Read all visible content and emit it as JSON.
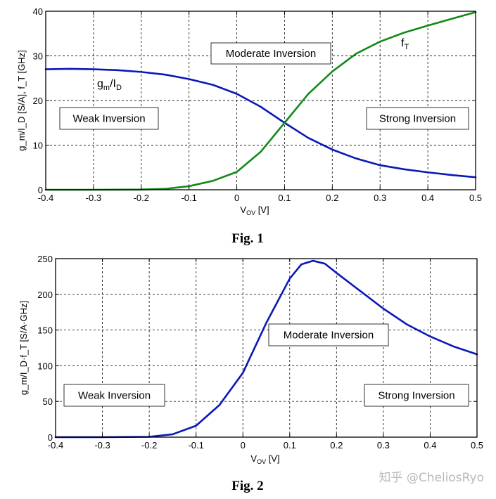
{
  "chart_data": [
    {
      "type": "line",
      "caption": "Fig. 1",
      "xlabel_main": "V",
      "xlabel_sub": "OV",
      "xlabel_unit": "[V]",
      "ylabel": "g_m/I_D [S/A], f_T [GHz]",
      "xlim": [
        -0.4,
        0.5
      ],
      "ylim": [
        0,
        40
      ],
      "xticks": [
        -0.4,
        -0.3,
        -0.2,
        -0.1,
        0,
        0.1,
        0.2,
        0.3,
        0.4,
        0.5
      ],
      "xtick_labels": [
        "-0.4",
        "-0.3",
        "-0.2",
        "-0.1",
        "0",
        "0.1",
        "0.2",
        "0.3",
        "0.4",
        "0.5"
      ],
      "yticks": [
        0,
        10,
        20,
        30,
        40
      ],
      "ytick_labels": [
        "0",
        "10",
        "20",
        "30",
        "40"
      ],
      "grid": true,
      "series": [
        {
          "label_main": "g",
          "label_sub": "m",
          "label_mid": "/I",
          "label_sub2": "D",
          "color": "#0b18b8",
          "x": [
            -0.4,
            -0.35,
            -0.3,
            -0.25,
            -0.2,
            -0.15,
            -0.1,
            -0.05,
            0,
            0.05,
            0.1,
            0.15,
            0.2,
            0.25,
            0.3,
            0.35,
            0.4,
            0.45,
            0.5
          ],
          "y": [
            27.0,
            27.1,
            27.0,
            26.8,
            26.4,
            25.8,
            24.8,
            23.5,
            21.5,
            18.6,
            15.0,
            11.6,
            9.0,
            7.0,
            5.5,
            4.6,
            3.9,
            3.3,
            2.8
          ]
        },
        {
          "label_main": "f",
          "label_sub": "T",
          "color": "#138a18",
          "x": [
            -0.4,
            -0.3,
            -0.2,
            -0.15,
            -0.1,
            -0.05,
            0,
            0.05,
            0.1,
            0.15,
            0.2,
            0.25,
            0.3,
            0.35,
            0.4,
            0.45,
            0.5
          ],
          "y": [
            0,
            0,
            0.05,
            0.2,
            0.8,
            2.0,
            4.0,
            8.5,
            15.0,
            21.5,
            26.5,
            30.5,
            33.2,
            35.2,
            36.8,
            38.3,
            39.8
          ]
        }
      ],
      "regions": [
        "Weak Inversion",
        "Moderate Inversion",
        "Strong Inversion"
      ]
    },
    {
      "type": "line",
      "caption": "Fig. 2",
      "xlabel_main": "V",
      "xlabel_sub": "OV",
      "xlabel_unit": "[V]",
      "ylabel": "g_m/I_D·f_T [S/A·GHz]",
      "xlim": [
        -0.4,
        0.5
      ],
      "ylim": [
        0,
        250
      ],
      "xticks": [
        -0.4,
        -0.3,
        -0.2,
        -0.1,
        0,
        0.1,
        0.2,
        0.3,
        0.4,
        0.5
      ],
      "xtick_labels": [
        "-0.4",
        "-0.3",
        "-0.2",
        "-0.1",
        "0",
        "0.1",
        "0.2",
        "0.3",
        "0.4",
        "0.5"
      ],
      "yticks": [
        0,
        50,
        100,
        150,
        200,
        250
      ],
      "ytick_labels": [
        "0",
        "50",
        "100",
        "150",
        "200",
        "250"
      ],
      "grid": true,
      "series": [
        {
          "color": "#0b18b8",
          "x": [
            -0.4,
            -0.3,
            -0.2,
            -0.15,
            -0.1,
            -0.05,
            0,
            0.05,
            0.1,
            0.125,
            0.15,
            0.175,
            0.2,
            0.25,
            0.3,
            0.35,
            0.4,
            0.45,
            0.5
          ],
          "y": [
            0,
            0,
            0.5,
            4,
            16,
            45,
            90,
            160,
            222,
            242,
            247,
            243,
            230,
            205,
            180,
            158,
            141,
            127,
            116
          ]
        }
      ],
      "regions": [
        "Weak Inversion",
        "Moderate Inversion",
        "Strong Inversion"
      ]
    }
  ],
  "watermark": "知乎 @CheliosRyo"
}
